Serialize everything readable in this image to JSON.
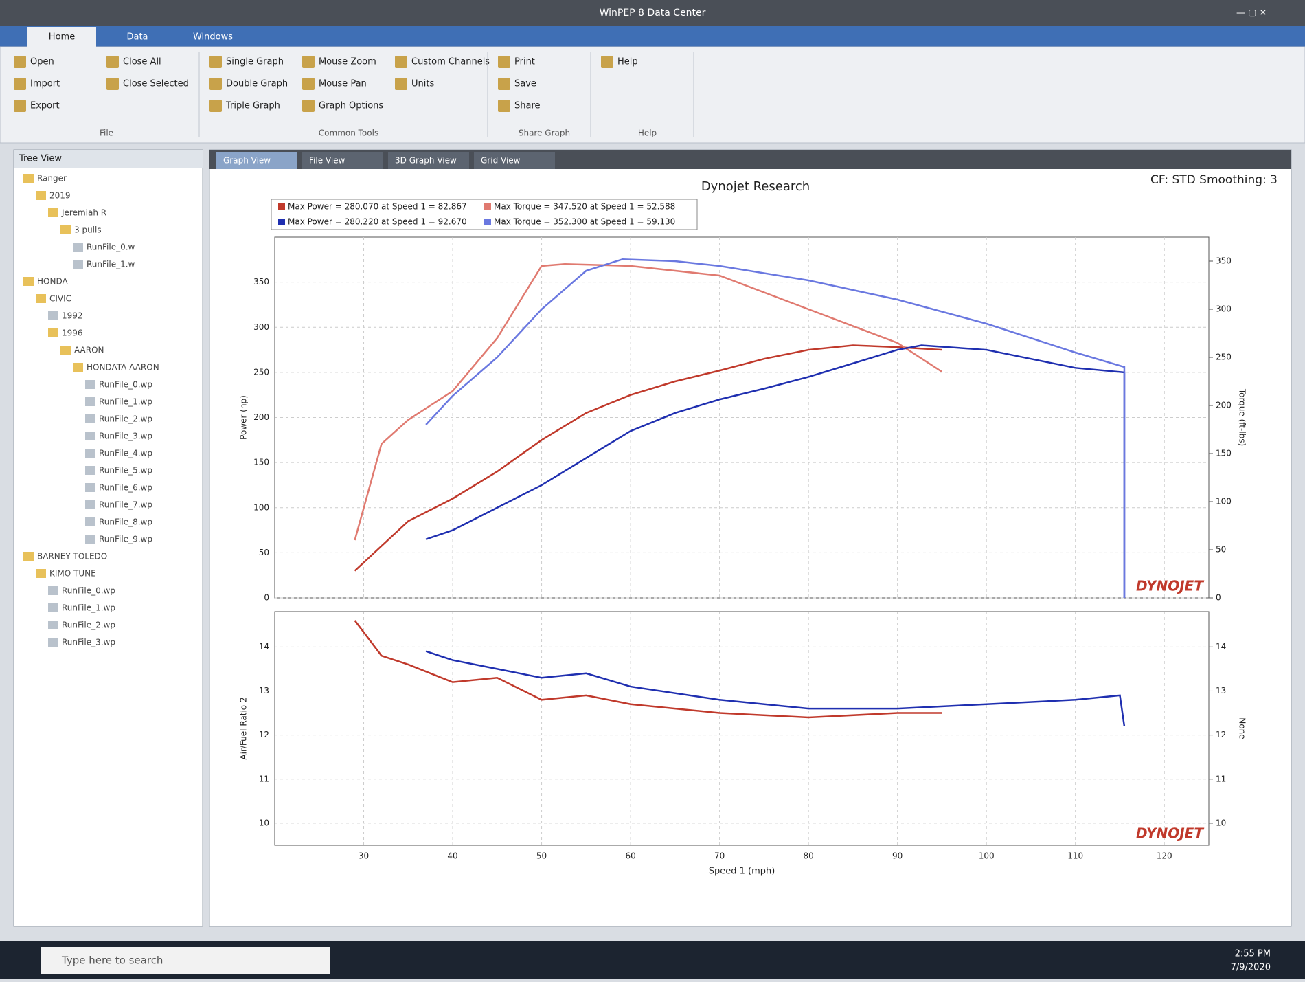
{
  "window": {
    "title": "WinPEP 8 Data Center"
  },
  "ribbon_tabs": [
    "Home",
    "Data",
    "Windows"
  ],
  "ribbon": {
    "groups": [
      {
        "label": "File",
        "buttons": [
          "Open",
          "Import",
          "Export",
          "Close All",
          "Close Selected"
        ]
      },
      {
        "label": "Common Tools",
        "buttons": [
          "Single Graph",
          "Double Graph",
          "Triple Graph",
          "Mouse Zoom",
          "Mouse Pan",
          "Graph Options",
          "Custom Channels",
          "Units"
        ]
      },
      {
        "label": "Share Graph",
        "buttons": [
          "Print",
          "Save",
          "Share"
        ]
      },
      {
        "label": "Help",
        "buttons": [
          "Help"
        ]
      }
    ]
  },
  "tree": {
    "title": "Tree View",
    "items": [
      {
        "label": "Ranger",
        "children": [
          {
            "label": "2019",
            "children": [
              {
                "label": "Jeremiah R",
                "children": [
                  {
                    "label": "3 pulls",
                    "children": [
                      {
                        "label": "RunFile_0.w"
                      },
                      {
                        "label": "RunFile_1.w"
                      }
                    ]
                  }
                ]
              }
            ]
          }
        ]
      },
      {
        "label": "HONDA",
        "children": [
          {
            "label": "CIVIC",
            "children": [
              {
                "label": "1992"
              },
              {
                "label": "1996",
                "children": [
                  {
                    "label": "AARON",
                    "children": [
                      {
                        "label": "HONDATA AARON",
                        "children": [
                          {
                            "label": "RunFile_0.wp"
                          },
                          {
                            "label": "RunFile_1.wp"
                          },
                          {
                            "label": "RunFile_2.wp"
                          },
                          {
                            "label": "RunFile_3.wp"
                          },
                          {
                            "label": "RunFile_4.wp"
                          },
                          {
                            "label": "RunFile_5.wp"
                          },
                          {
                            "label": "RunFile_6.wp"
                          },
                          {
                            "label": "RunFile_7.wp"
                          },
                          {
                            "label": "RunFile_8.wp"
                          },
                          {
                            "label": "RunFile_9.wp"
                          }
                        ]
                      }
                    ]
                  }
                ]
              }
            ]
          }
        ]
      },
      {
        "label": "BARNEY TOLEDO",
        "children": [
          {
            "label": "KIMO TUNE",
            "children": [
              {
                "label": "RunFile_0.wp"
              },
              {
                "label": "RunFile_1.wp"
              },
              {
                "label": "RunFile_2.wp"
              },
              {
                "label": "RunFile_3.wp"
              }
            ]
          }
        ]
      }
    ]
  },
  "doc_tabs": [
    "Graph View",
    "File View",
    "3D Graph View",
    "Grid View"
  ],
  "graph": {
    "title": "Dynojet Research",
    "info": "CF: STD Smoothing: 3",
    "legend": [
      "Max Power = 280.070 at Speed 1 = 82.867",
      "Max Torque = 347.520 at Speed 1 = 52.588",
      "Max Power = 280.220 at Speed 1 = 92.670",
      "Max Torque = 352.300 at Speed 1 = 59.130"
    ],
    "charts": [
      {
        "type": "line",
        "ylabel": "Power (hp)",
        "y2label": "Torque (ft-lbs)",
        "watermark": "DYNOJET",
        "grid": true,
        "xlim": [
          20,
          125
        ],
        "xticks": [
          30,
          40,
          50,
          60,
          70,
          80,
          90,
          100,
          110,
          120
        ],
        "ylim": [
          0,
          400
        ],
        "yticks": [
          0,
          50,
          100,
          150,
          200,
          250,
          300,
          350
        ],
        "y2lim": [
          0,
          375
        ],
        "y2ticks": [
          0,
          50,
          100,
          150,
          200,
          250,
          300,
          350
        ],
        "series": [
          {
            "color": "#c0392b",
            "x": [
              29,
              35,
              40,
              45,
              50,
              55,
              60,
              65,
              70,
              75,
              80,
              85,
              90,
              95
            ],
            "values": [
              30,
              85,
              110,
              140,
              175,
              205,
              225,
              240,
              252,
              265,
              275,
              280,
              278,
              275
            ]
          },
          {
            "color": "#e07a70",
            "axis": "y2",
            "x": [
              29,
              32,
              35,
              40,
              45,
              50,
              52.6,
              60,
              70,
              80,
              90,
              95
            ],
            "values": [
              60,
              160,
              185,
              215,
              270,
              345,
              347,
              345,
              335,
              300,
              265,
              235
            ]
          },
          {
            "color": "#1f2fb0",
            "x": [
              37,
              40,
              45,
              50,
              55,
              60,
              65,
              70,
              75,
              80,
              85,
              90,
              92.7,
              100,
              105,
              110,
              115.5,
              115.5
            ],
            "values": [
              65,
              75,
              100,
              125,
              155,
              185,
              205,
              220,
              232,
              245,
              260,
              275,
              280,
              275,
              265,
              255,
              250,
              0
            ]
          },
          {
            "color": "#6a78e0",
            "axis": "y2",
            "x": [
              37,
              40,
              45,
              50,
              55,
              59.1,
              65,
              70,
              80,
              90,
              100,
              110,
              115.5,
              115.5
            ],
            "values": [
              180,
              210,
              250,
              300,
              340,
              352,
              350,
              345,
              330,
              310,
              285,
              255,
              240,
              0
            ]
          }
        ]
      },
      {
        "type": "line",
        "ylabel": "Air/Fuel Ratio 2",
        "y2label": "None",
        "xlabel": "Speed 1 (mph)",
        "watermark": "DYNOJET",
        "grid": true,
        "xlim": [
          20,
          125
        ],
        "xticks": [
          30,
          40,
          50,
          60,
          70,
          80,
          90,
          100,
          110,
          120
        ],
        "ylim": [
          9.5,
          14.8
        ],
        "yticks": [
          10,
          11,
          12,
          13,
          14
        ],
        "y2lim": [
          9.5,
          14.8
        ],
        "y2ticks": [
          10,
          11,
          12,
          13,
          14
        ],
        "series": [
          {
            "color": "#c0392b",
            "x": [
              29,
              32,
              35,
              40,
              45,
              50,
              55,
              60,
              70,
              80,
              90,
              95
            ],
            "values": [
              14.6,
              13.8,
              13.6,
              13.2,
              13.3,
              12.8,
              12.9,
              12.7,
              12.5,
              12.4,
              12.5,
              12.5
            ]
          },
          {
            "color": "#1f2fb0",
            "x": [
              37,
              40,
              45,
              50,
              55,
              60,
              70,
              80,
              90,
              100,
              110,
              115,
              115.5
            ],
            "values": [
              13.9,
              13.7,
              13.5,
              13.3,
              13.4,
              13.1,
              12.8,
              12.6,
              12.6,
              12.7,
              12.8,
              12.9,
              12.2
            ]
          }
        ]
      }
    ]
  },
  "taskbar": {
    "search": "Type here to search",
    "time": "2:55 PM",
    "date": "7/9/2020"
  }
}
